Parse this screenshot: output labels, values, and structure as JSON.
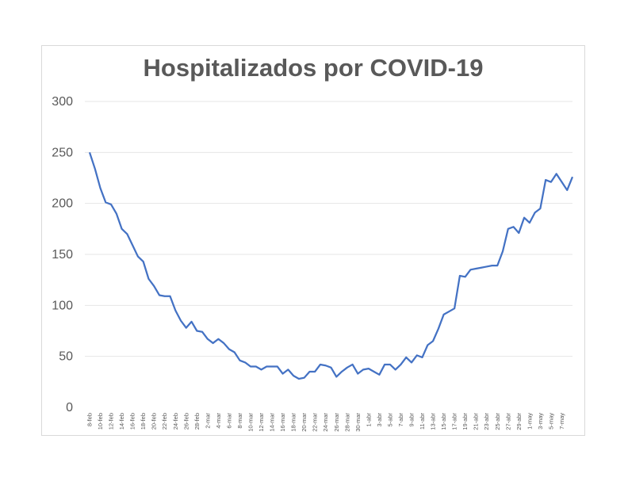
{
  "chart_data": {
    "type": "line",
    "title": "Hospitalizados por COVID-19",
    "xlabel": "",
    "ylabel": "",
    "ylim": [
      0,
      300
    ],
    "yticks": [
      0,
      50,
      100,
      150,
      200,
      250,
      300
    ],
    "grid": true,
    "legend": "none",
    "line_color": "#4472c4",
    "x_tick_labels": [
      "8-feb",
      "10-feb",
      "12-feb",
      "14-feb",
      "16-feb",
      "18-feb",
      "20-feb",
      "22-feb",
      "24-feb",
      "26-feb",
      "28-feb",
      "2-mar",
      "4-mar",
      "6-mar",
      "8-mar",
      "10-mar",
      "12-mar",
      "14-mar",
      "16-mar",
      "18-mar",
      "20-mar",
      "22-mar",
      "24-mar",
      "26-mar",
      "28-mar",
      "30-mar",
      "1-abr",
      "3-abr",
      "5-abr",
      "7-abr",
      "9-abr",
      "11-abr",
      "13-abr",
      "15-abr",
      "17-abr",
      "19-abr",
      "21-abr",
      "23-abr",
      "25-abr",
      "27-abr",
      "29-abr",
      "1-may",
      "3-may",
      "5-may",
      "7-may"
    ],
    "series": [
      {
        "values": [
          250,
          234,
          215,
          201,
          199,
          190,
          175,
          170,
          159,
          148,
          143,
          126,
          119,
          110,
          109,
          109,
          95,
          85,
          78,
          84,
          75,
          74,
          67,
          63,
          67,
          63,
          57,
          54,
          46,
          44,
          40,
          40,
          37,
          40,
          40,
          40,
          33,
          37,
          31,
          28,
          29,
          35,
          35,
          42,
          41,
          39,
          30,
          35,
          39,
          42,
          33,
          37,
          38,
          35,
          32,
          42,
          42,
          37,
          42,
          49,
          44,
          51,
          49,
          61,
          65,
          77,
          91,
          94,
          97,
          129,
          128,
          135,
          136,
          137,
          138,
          139,
          139,
          153,
          175,
          177,
          171,
          186,
          181,
          191,
          195,
          223,
          221,
          229,
          221,
          213,
          226
        ]
      }
    ]
  }
}
